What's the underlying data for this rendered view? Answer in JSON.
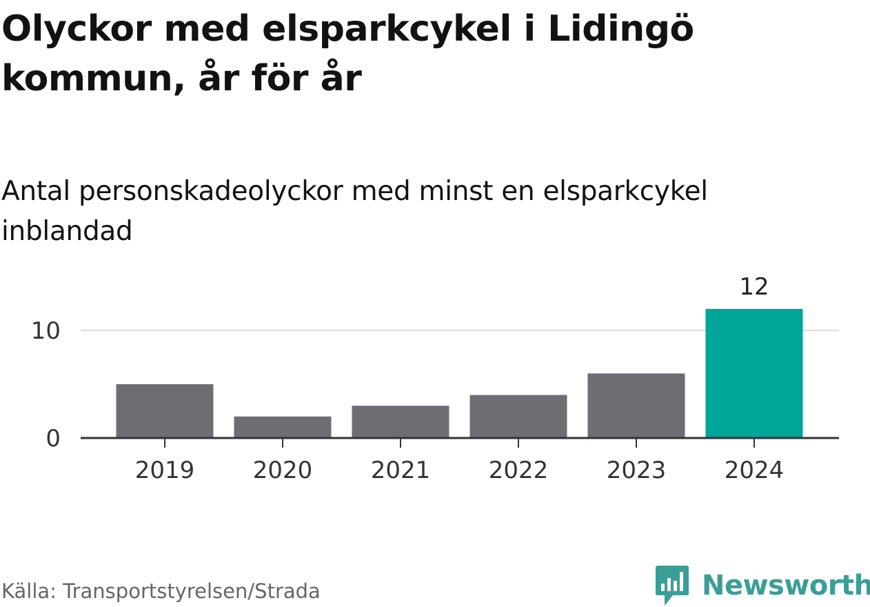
{
  "title": "Olyckor med elsparkcykel i Lidingö kommun, år för år",
  "subtitle": "Antal personskadeolyckor med minst en elsparkcykel inblandad",
  "source": "Källa: Transportstyrelsen/Strada",
  "brand": {
    "name": "Newsworthy",
    "icon": "newsworthy-logo-icon",
    "color": "#3a9e96"
  },
  "colors": {
    "bar_default": "#6e6d73",
    "bar_highlight": "#00a59a",
    "gridline": "#e0e0e0",
    "axis": "#333333"
  },
  "chart_data": {
    "type": "bar",
    "title": "Olyckor med elsparkcykel i Lidingö kommun, år för år",
    "subtitle": "Antal personskadeolyckor med minst en elsparkcykel inblandad",
    "categories": [
      "2019",
      "2020",
      "2021",
      "2022",
      "2023",
      "2024"
    ],
    "values": [
      5,
      2,
      3,
      4,
      6,
      12
    ],
    "highlight": "2024",
    "data_labels": {
      "2024": "12"
    },
    "yticks": [
      0,
      10
    ],
    "ylim": [
      0,
      12
    ],
    "xlabel": "",
    "ylabel": "",
    "grid": true,
    "legend": "none"
  }
}
